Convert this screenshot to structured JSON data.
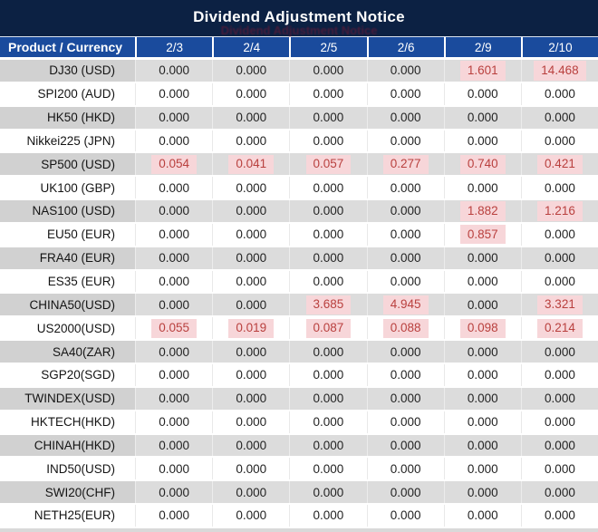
{
  "colors": {
    "title_band_bg": "#0c2143",
    "header_row_bg": "#1a4b9d",
    "gray_row_bg": "#dcdcdc",
    "gray_label_bg": "#d1d1d1",
    "white_row_bg": "#ffffff",
    "red_value_text": "#b9403e",
    "red_value_highlight_bg": "#f7d6d9",
    "header_text": "#ffffff",
    "value_text": "#232323"
  },
  "chart_data": {
    "type": "table",
    "title": "Dividend Adjustment Notice",
    "columns": [
      "Product / Currency",
      "2/3",
      "2/4",
      "2/5",
      "2/6",
      "2/9",
      "2/10"
    ],
    "rows": [
      {
        "label": "DJ30 (USD)",
        "values": [
          "0.000",
          "0.000",
          "0.000",
          "0.000",
          "1.601",
          "14.468"
        ],
        "red": [
          0,
          0,
          0,
          0,
          1,
          1
        ]
      },
      {
        "label": "SPI200 (AUD)",
        "values": [
          "0.000",
          "0.000",
          "0.000",
          "0.000",
          "0.000",
          "0.000"
        ],
        "red": [
          0,
          0,
          0,
          0,
          0,
          0
        ]
      },
      {
        "label": "HK50 (HKD)",
        "values": [
          "0.000",
          "0.000",
          "0.000",
          "0.000",
          "0.000",
          "0.000"
        ],
        "red": [
          0,
          0,
          0,
          0,
          0,
          0
        ]
      },
      {
        "label": "Nikkei225 (JPN)",
        "values": [
          "0.000",
          "0.000",
          "0.000",
          "0.000",
          "0.000",
          "0.000"
        ],
        "red": [
          0,
          0,
          0,
          0,
          0,
          0
        ]
      },
      {
        "label": "SP500 (USD)",
        "values": [
          "0.054",
          "0.041",
          "0.057",
          "0.277",
          "0.740",
          "0.421"
        ],
        "red": [
          1,
          1,
          1,
          1,
          1,
          1
        ]
      },
      {
        "label": "UK100 (GBP)",
        "values": [
          "0.000",
          "0.000",
          "0.000",
          "0.000",
          "0.000",
          "0.000"
        ],
        "red": [
          0,
          0,
          0,
          0,
          0,
          0
        ]
      },
      {
        "label": "NAS100 (USD)",
        "values": [
          "0.000",
          "0.000",
          "0.000",
          "0.000",
          "1.882",
          "1.216"
        ],
        "red": [
          0,
          0,
          0,
          0,
          1,
          1
        ]
      },
      {
        "label": "EU50 (EUR)",
        "values": [
          "0.000",
          "0.000",
          "0.000",
          "0.000",
          "0.857",
          "0.000"
        ],
        "red": [
          0,
          0,
          0,
          0,
          1,
          0
        ]
      },
      {
        "label": "FRA40 (EUR)",
        "values": [
          "0.000",
          "0.000",
          "0.000",
          "0.000",
          "0.000",
          "0.000"
        ],
        "red": [
          0,
          0,
          0,
          0,
          0,
          0
        ]
      },
      {
        "label": "ES35 (EUR)",
        "values": [
          "0.000",
          "0.000",
          "0.000",
          "0.000",
          "0.000",
          "0.000"
        ],
        "red": [
          0,
          0,
          0,
          0,
          0,
          0
        ]
      },
      {
        "label": "CHINA50(USD)",
        "values": [
          "0.000",
          "0.000",
          "3.685",
          "4.945",
          "0.000",
          "3.321"
        ],
        "red": [
          0,
          0,
          1,
          1,
          0,
          1
        ]
      },
      {
        "label": "US2000(USD)",
        "values": [
          "0.055",
          "0.019",
          "0.087",
          "0.088",
          "0.098",
          "0.214"
        ],
        "red": [
          1,
          1,
          1,
          1,
          1,
          1
        ]
      },
      {
        "label": "SA40(ZAR)",
        "values": [
          "0.000",
          "0.000",
          "0.000",
          "0.000",
          "0.000",
          "0.000"
        ],
        "red": [
          0,
          0,
          0,
          0,
          0,
          0
        ]
      },
      {
        "label": "SGP20(SGD)",
        "values": [
          "0.000",
          "0.000",
          "0.000",
          "0.000",
          "0.000",
          "0.000"
        ],
        "red": [
          0,
          0,
          0,
          0,
          0,
          0
        ]
      },
      {
        "label": "TWINDEX(USD)",
        "values": [
          "0.000",
          "0.000",
          "0.000",
          "0.000",
          "0.000",
          "0.000"
        ],
        "red": [
          0,
          0,
          0,
          0,
          0,
          0
        ]
      },
      {
        "label": "HKTECH(HKD)",
        "values": [
          "0.000",
          "0.000",
          "0.000",
          "0.000",
          "0.000",
          "0.000"
        ],
        "red": [
          0,
          0,
          0,
          0,
          0,
          0
        ]
      },
      {
        "label": "CHINAH(HKD)",
        "values": [
          "0.000",
          "0.000",
          "0.000",
          "0.000",
          "0.000",
          "0.000"
        ],
        "red": [
          0,
          0,
          0,
          0,
          0,
          0
        ]
      },
      {
        "label": "IND50(USD)",
        "values": [
          "0.000",
          "0.000",
          "0.000",
          "0.000",
          "0.000",
          "0.000"
        ],
        "red": [
          0,
          0,
          0,
          0,
          0,
          0
        ]
      },
      {
        "label": "SWI20(CHF)",
        "values": [
          "0.000",
          "0.000",
          "0.000",
          "0.000",
          "0.000",
          "0.000"
        ],
        "red": [
          0,
          0,
          0,
          0,
          0,
          0
        ]
      },
      {
        "label": "NETH25(EUR)",
        "values": [
          "0.000",
          "0.000",
          "0.000",
          "0.000",
          "0.000",
          "0.000"
        ],
        "red": [
          0,
          0,
          0,
          0,
          0,
          0
        ]
      }
    ]
  }
}
